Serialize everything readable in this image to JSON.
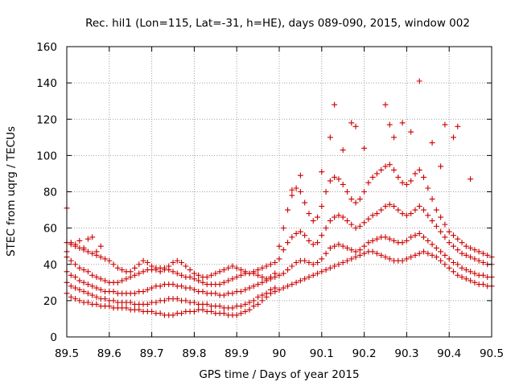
{
  "chart_data": {
    "type": "scatter",
    "title": "Rec. hil1 (Lon=115, Lat=-31, h=HE), days 089-090, 2015, window 002",
    "xlabel": "GPS time / Days of year 2015",
    "ylabel": "STEC from uqrg / TECUs",
    "xlim": [
      89.5,
      90.5
    ],
    "ylim": [
      0,
      160
    ],
    "xticks": [
      89.5,
      89.6,
      89.7,
      89.8,
      89.9,
      90.0,
      90.1,
      90.2,
      90.3,
      90.4,
      90.5
    ],
    "xtick_labels": [
      "89.5",
      "89.6",
      "89.7",
      "89.8",
      "89.9",
      "90",
      "90.1",
      "90.2",
      "90.3",
      "90.4",
      "90.5"
    ],
    "yticks": [
      0,
      20,
      40,
      60,
      80,
      100,
      120,
      140,
      160
    ],
    "ytick_labels": [
      "0",
      "20",
      "40",
      "60",
      "80",
      "100",
      "120",
      "140",
      "160"
    ],
    "grid": true,
    "marker": "plus",
    "marker_color": "#cc0000",
    "series": [
      {
        "name": "band1",
        "x": [
          89.5,
          89.51,
          89.52,
          89.53,
          89.54,
          89.55,
          89.56,
          89.57,
          89.58,
          89.59,
          89.6,
          89.61,
          89.62,
          89.63,
          89.64,
          89.65,
          89.66,
          89.67,
          89.68,
          89.69,
          89.7,
          89.71,
          89.72,
          89.73,
          89.74,
          89.75,
          89.76,
          89.77,
          89.78,
          89.79,
          89.8,
          89.81,
          89.82,
          89.83,
          89.84,
          89.85,
          89.86,
          89.87,
          89.88,
          89.89,
          89.9,
          89.91,
          89.92,
          89.93,
          89.94,
          89.95,
          89.96,
          89.97,
          89.98,
          89.99
        ],
        "y": [
          24,
          22,
          21,
          20,
          19,
          19,
          18,
          18,
          17,
          17,
          17,
          16,
          16,
          16,
          16,
          15,
          15,
          15,
          14,
          14,
          14,
          13,
          13,
          12,
          12,
          12,
          13,
          13,
          14,
          14,
          14,
          15,
          15,
          14,
          14,
          13,
          13,
          13,
          12,
          12,
          12,
          13,
          14,
          15,
          17,
          18,
          20,
          22,
          24,
          25
        ]
      },
      {
        "name": "band2",
        "x": [
          89.5,
          89.51,
          89.52,
          89.53,
          89.54,
          89.55,
          89.56,
          89.57,
          89.58,
          89.59,
          89.6,
          89.61,
          89.62,
          89.63,
          89.64,
          89.65,
          89.66,
          89.67,
          89.68,
          89.69,
          89.7,
          89.71,
          89.72,
          89.73,
          89.74,
          89.75,
          89.76,
          89.77,
          89.78,
          89.79,
          89.8,
          89.81,
          89.82,
          89.83,
          89.84,
          89.85,
          89.86,
          89.87,
          89.88,
          89.89,
          89.9,
          89.91,
          89.92,
          89.93,
          89.94,
          89.95,
          89.96,
          89.97,
          89.98,
          89.99
        ],
        "y": [
          30,
          28,
          27,
          26,
          25,
          24,
          23,
          22,
          21,
          21,
          20,
          20,
          19,
          19,
          19,
          19,
          18,
          18,
          18,
          18,
          19,
          19,
          20,
          20,
          21,
          21,
          21,
          20,
          20,
          19,
          19,
          18,
          18,
          18,
          17,
          17,
          17,
          16,
          16,
          16,
          17,
          17,
          18,
          19,
          20,
          22,
          23,
          24,
          26,
          27
        ]
      },
      {
        "name": "band3",
        "x": [
          89.5,
          89.51,
          89.52,
          89.53,
          89.54,
          89.55,
          89.56,
          89.57,
          89.58,
          89.59,
          89.6,
          89.61,
          89.62,
          89.63,
          89.64,
          89.65,
          89.66,
          89.67,
          89.68,
          89.69,
          89.7,
          89.71,
          89.72,
          89.73,
          89.74,
          89.75,
          89.76,
          89.77,
          89.78,
          89.79,
          89.8,
          89.81,
          89.82,
          89.83,
          89.84,
          89.85,
          89.86,
          89.87,
          89.88,
          89.89,
          89.9,
          89.91,
          89.92,
          89.93,
          89.94,
          89.95,
          89.96,
          89.97,
          89.98,
          89.99
        ],
        "y": [
          36,
          34,
          33,
          31,
          30,
          29,
          28,
          27,
          26,
          25,
          25,
          25,
          24,
          24,
          24,
          24,
          24,
          25,
          25,
          26,
          27,
          28,
          28,
          29,
          29,
          29,
          28,
          28,
          27,
          27,
          26,
          25,
          25,
          24,
          24,
          24,
          23,
          23,
          24,
          24,
          25,
          25,
          26,
          27,
          28,
          29,
          30,
          31,
          32,
          33
        ]
      },
      {
        "name": "band4",
        "x": [
          89.5,
          89.51,
          89.52,
          89.53,
          89.54,
          89.55,
          89.56,
          89.57,
          89.58,
          89.59,
          89.6,
          89.61,
          89.62,
          89.63,
          89.64,
          89.65,
          89.66,
          89.67,
          89.68,
          89.69,
          89.7,
          89.71,
          89.72,
          89.73,
          89.74,
          89.75,
          89.76,
          89.77,
          89.78,
          89.79,
          89.8,
          89.81,
          89.82,
          89.83,
          89.84,
          89.85,
          89.86,
          89.87,
          89.88,
          89.89,
          89.9,
          89.91,
          89.92,
          89.93,
          89.94,
          89.95,
          89.96,
          89.97,
          89.98,
          89.99
        ],
        "y": [
          44,
          42,
          40,
          38,
          37,
          36,
          34,
          33,
          32,
          31,
          30,
          30,
          30,
          31,
          32,
          33,
          34,
          35,
          36,
          37,
          37,
          38,
          38,
          38,
          37,
          36,
          35,
          34,
          33,
          33,
          32,
          31,
          30,
          29,
          29,
          29,
          29,
          30,
          31,
          32,
          33,
          34,
          35,
          35,
          35,
          34,
          33,
          32,
          33,
          35
        ]
      },
      {
        "name": "band5",
        "x": [
          89.5,
          89.51,
          89.52,
          89.53,
          89.54,
          89.55,
          89.56,
          89.57,
          89.58,
          89.59,
          89.6,
          89.61,
          89.62,
          89.63,
          89.64,
          89.65,
          89.66,
          89.67,
          89.68,
          89.69,
          89.7,
          89.71,
          89.72,
          89.73,
          89.74,
          89.75,
          89.76,
          89.77,
          89.78,
          89.79,
          89.8,
          89.81,
          89.82,
          89.83,
          89.84,
          89.85,
          89.86,
          89.87,
          89.88,
          89.89,
          89.9,
          89.91,
          89.92,
          89.93,
          89.94,
          89.95,
          89.96,
          89.97,
          89.98,
          89.99
        ],
        "y": [
          52,
          51,
          50,
          49,
          48,
          47,
          46,
          45,
          44,
          43,
          42,
          40,
          38,
          37,
          36,
          36,
          38,
          40,
          42,
          41,
          39,
          37,
          36,
          37,
          39,
          41,
          42,
          41,
          39,
          37,
          35,
          34,
          33,
          33,
          34,
          35,
          36,
          37,
          38,
          39,
          38,
          37,
          36,
          35,
          36,
          37,
          38,
          39,
          40,
          41
        ]
      },
      {
        "name": "early-outliers",
        "x": [
          89.5,
          89.51,
          89.52,
          89.53,
          89.54,
          89.55,
          89.56,
          89.57,
          89.58,
          89.5
        ],
        "y": [
          71,
          52,
          51,
          53,
          49,
          54,
          55,
          47,
          50,
          47
        ]
      },
      {
        "name": "day90-low",
        "x": [
          90.0,
          90.01,
          90.02,
          90.03,
          90.04,
          90.05,
          90.06,
          90.07,
          90.08,
          90.09,
          90.1,
          90.11,
          90.12,
          90.13,
          90.14,
          90.15,
          90.16,
          90.17,
          90.18,
          90.19,
          90.2,
          90.21,
          90.22,
          90.23,
          90.24,
          90.25,
          90.26,
          90.27,
          90.28,
          90.29,
          90.3,
          90.31,
          90.32,
          90.33,
          90.34,
          90.35,
          90.36,
          90.37,
          90.38,
          90.39,
          90.4,
          90.41,
          90.42,
          90.43,
          90.44,
          90.45,
          90.46,
          90.47,
          90.48,
          90.49,
          90.5
        ],
        "y": [
          26,
          27,
          28,
          29,
          30,
          31,
          32,
          33,
          34,
          35,
          36,
          37,
          38,
          39,
          40,
          41,
          42,
          43,
          44,
          45,
          46,
          47,
          47,
          46,
          45,
          44,
          43,
          42,
          42,
          42,
          43,
          44,
          45,
          46,
          47,
          46,
          45,
          44,
          42,
          40,
          38,
          36,
          34,
          33,
          32,
          31,
          30,
          29,
          29,
          28,
          28
        ]
      },
      {
        "name": "day90-mid",
        "x": [
          90.0,
          90.01,
          90.02,
          90.03,
          90.04,
          90.05,
          90.06,
          90.07,
          90.08,
          90.09,
          90.1,
          90.11,
          90.12,
          90.13,
          90.14,
          90.15,
          90.16,
          90.17,
          90.18,
          90.19,
          90.2,
          90.21,
          90.22,
          90.23,
          90.24,
          90.25,
          90.26,
          90.27,
          90.28,
          90.29,
          90.3,
          90.31,
          90.32,
          90.33,
          90.34,
          90.35,
          90.36,
          90.37,
          90.38,
          90.39,
          90.4,
          90.41,
          90.42,
          90.43,
          90.44,
          90.45,
          90.46,
          90.47,
          90.48,
          90.49,
          90.5
        ],
        "y": [
          34,
          35,
          37,
          39,
          41,
          42,
          42,
          41,
          40,
          41,
          43,
          46,
          49,
          50,
          51,
          50,
          49,
          48,
          47,
          48,
          50,
          52,
          53,
          54,
          55,
          55,
          54,
          53,
          52,
          52,
          53,
          55,
          56,
          57,
          55,
          53,
          51,
          49,
          47,
          45,
          43,
          41,
          40,
          38,
          37,
          36,
          35,
          34,
          34,
          33,
          33
        ]
      },
      {
        "name": "day90-upper",
        "x": [
          90.0,
          90.01,
          90.02,
          90.03,
          90.04,
          90.05,
          90.06,
          90.07,
          90.08,
          90.09,
          90.1,
          90.11,
          90.12,
          90.13,
          90.14,
          90.15,
          90.16,
          90.17,
          90.18,
          90.19,
          90.2,
          90.21,
          90.22,
          90.23,
          90.24,
          90.25,
          90.26,
          90.27,
          90.28,
          90.29,
          90.3,
          90.31,
          90.32,
          90.33,
          90.34,
          90.35,
          90.36,
          90.37,
          90.38,
          90.39,
          90.4,
          90.41,
          90.42,
          90.43,
          90.44,
          90.45,
          90.46,
          90.47,
          90.48,
          90.49,
          90.5
        ],
        "y": [
          43,
          48,
          52,
          55,
          57,
          58,
          56,
          53,
          51,
          52,
          56,
          60,
          64,
          66,
          67,
          66,
          64,
          62,
          60,
          61,
          63,
          65,
          67,
          68,
          70,
          72,
          73,
          72,
          70,
          68,
          67,
          68,
          70,
          72,
          70,
          67,
          64,
          61,
          58,
          55,
          52,
          50,
          48,
          46,
          45,
          44,
          43,
          42,
          41,
          40,
          40
        ]
      },
      {
        "name": "day90-high",
        "x": [
          90.0,
          90.01,
          90.02,
          90.03,
          90.04,
          90.05,
          90.06,
          90.07,
          90.08,
          90.09,
          90.1,
          90.11,
          90.12,
          90.13,
          90.14,
          90.15,
          90.16,
          90.17,
          90.18,
          90.19,
          90.2,
          90.21,
          90.22,
          90.23,
          90.24,
          90.25,
          90.26,
          90.27,
          90.28,
          90.29,
          90.3,
          90.31,
          90.32,
          90.33,
          90.34,
          90.35,
          90.36,
          90.37,
          90.38,
          90.39,
          90.4,
          90.41,
          90.42,
          90.43,
          90.44,
          90.45,
          90.46,
          90.47,
          90.48,
          90.49,
          90.5
        ],
        "y": [
          50,
          60,
          70,
          78,
          82,
          80,
          74,
          68,
          64,
          66,
          72,
          80,
          86,
          88,
          87,
          84,
          80,
          76,
          74,
          76,
          80,
          85,
          88,
          90,
          92,
          94,
          95,
          92,
          88,
          85,
          84,
          86,
          90,
          92,
          88,
          82,
          76,
          70,
          66,
          62,
          58,
          56,
          54,
          52,
          50,
          49,
          48,
          47,
          46,
          45,
          44
        ]
      },
      {
        "name": "day90-spikes",
        "x": [
          90.03,
          90.05,
          90.1,
          90.12,
          90.13,
          90.15,
          90.17,
          90.18,
          90.2,
          90.25,
          90.26,
          90.27,
          90.29,
          90.31,
          90.33,
          90.36,
          90.38,
          90.39,
          90.41,
          90.42,
          90.45
        ],
        "y": [
          81,
          89,
          91,
          110,
          128,
          103,
          118,
          116,
          104,
          128,
          117,
          110,
          118,
          113,
          141,
          107,
          94,
          117,
          110,
          116,
          87
        ]
      }
    ]
  }
}
